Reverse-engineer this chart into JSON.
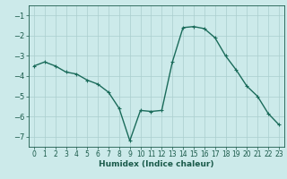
{
  "x": [
    0,
    1,
    2,
    3,
    4,
    5,
    6,
    7,
    8,
    9,
    10,
    11,
    12,
    13,
    14,
    15,
    16,
    17,
    18,
    19,
    20,
    21,
    22,
    23
  ],
  "y": [
    -3.5,
    -3.3,
    -3.5,
    -3.8,
    -3.9,
    -4.2,
    -4.4,
    -4.8,
    -5.6,
    -7.2,
    -5.7,
    -5.75,
    -5.7,
    -3.3,
    -1.6,
    -1.55,
    -1.65,
    -2.1,
    -3.0,
    -3.7,
    -4.5,
    -5.0,
    -5.85,
    -6.4
  ],
  "line_color": "#1a6b5a",
  "marker": "+",
  "marker_size": 3,
  "bg_color": "#cceaea",
  "grid_color": "#aacece",
  "tick_color": "#1a5a4a",
  "xlabel": "Humidex (Indice chaleur)",
  "xlabel_fontsize": 6.5,
  "ylim": [
    -7.5,
    -0.5
  ],
  "yticks": [
    -7,
    -6,
    -5,
    -4,
    -3,
    -2,
    -1
  ],
  "xticks": [
    0,
    1,
    2,
    3,
    4,
    5,
    6,
    7,
    8,
    9,
    10,
    11,
    12,
    13,
    14,
    15,
    16,
    17,
    18,
    19,
    20,
    21,
    22,
    23
  ],
  "axis_color": "#1a5a4a",
  "linewidth": 1.0,
  "tick_fontsize": 5.5,
  "ytick_fontsize": 6.0
}
